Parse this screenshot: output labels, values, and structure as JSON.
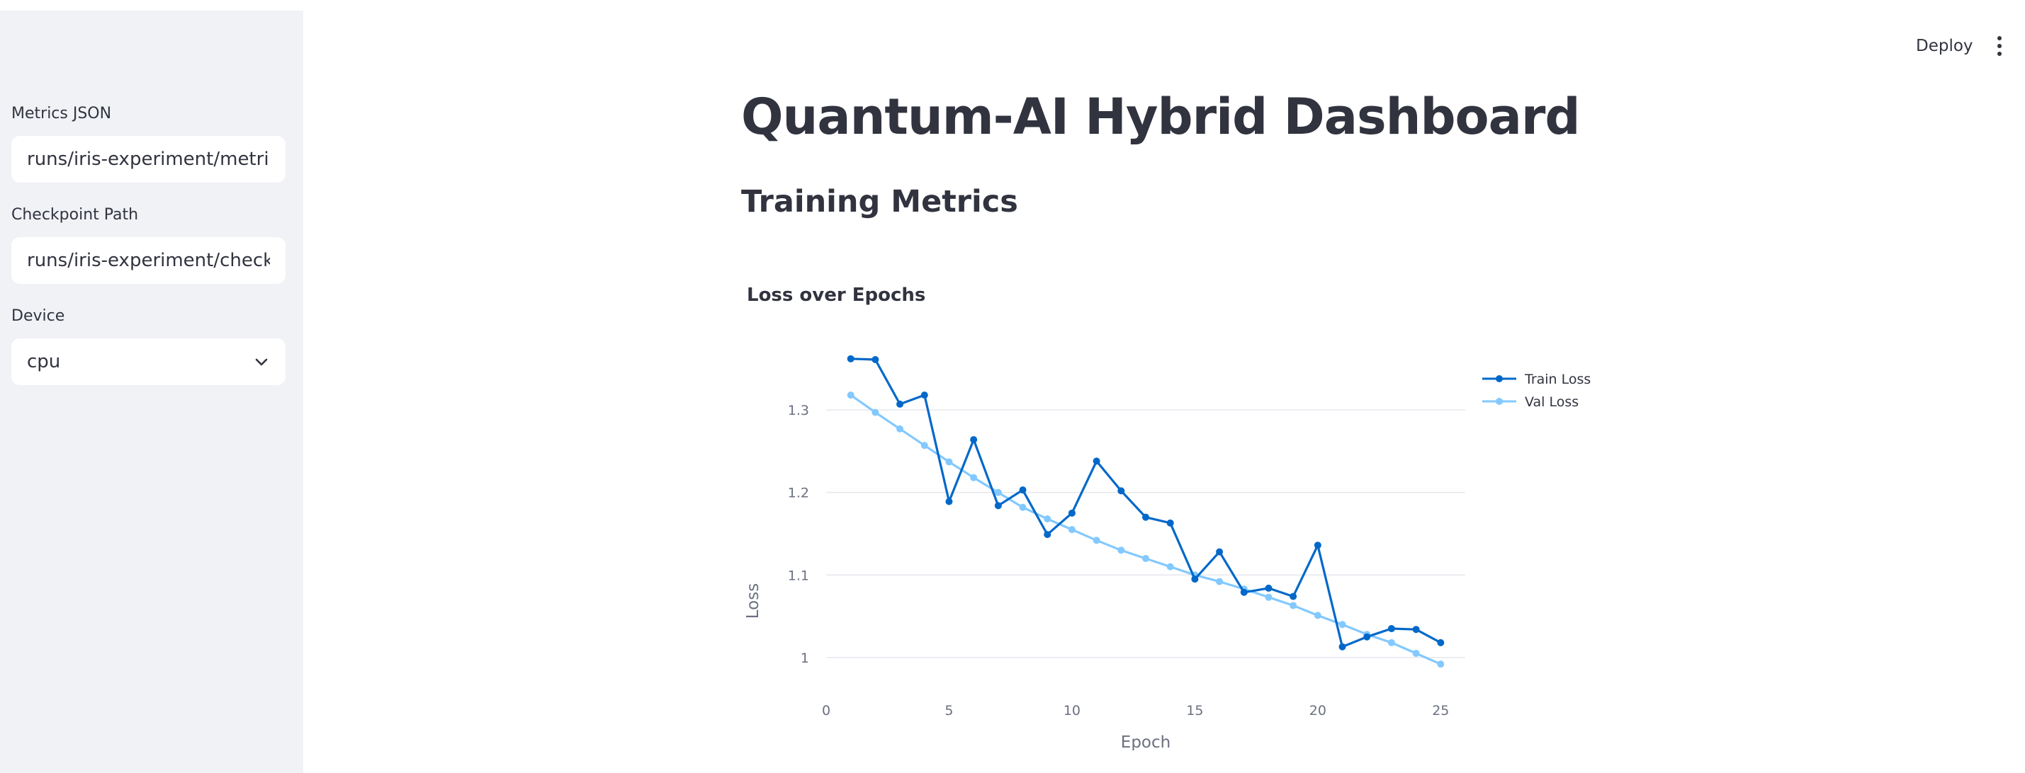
{
  "sidebar": {
    "metrics_json": {
      "label": "Metrics JSON",
      "value": "runs/iris-experiment/metrics.json"
    },
    "checkpoint_path": {
      "label": "Checkpoint Path",
      "value": "runs/iris-experiment/checkpoint"
    },
    "device": {
      "label": "Device",
      "value": "cpu",
      "icon": "chevron-down-icon"
    }
  },
  "header": {
    "deploy_label": "Deploy",
    "menu_icon": "kebab-menu-icon"
  },
  "main": {
    "title": "Quantum-AI Hybrid Dashboard",
    "section_title": "Training Metrics"
  },
  "colors": {
    "sidebar_bg": "#f0f2f6",
    "train_loss": "#0068c9",
    "val_loss": "#83c9ff",
    "text": "#31333f"
  },
  "chart_data": {
    "type": "line",
    "title": "Loss over Epochs",
    "xlabel": "Epoch",
    "ylabel": "Loss",
    "xlim": [
      0,
      26
    ],
    "ylim": [
      0.975,
      1.385
    ],
    "xticks": [
      0,
      5,
      10,
      15,
      20,
      25
    ],
    "yticks": [
      1,
      1.1,
      1.2,
      1.3
    ],
    "ytick_labels": [
      "1",
      "1.1",
      "1.2",
      "1.3"
    ],
    "grid": true,
    "legend_position": "top-right",
    "x": [
      1,
      2,
      3,
      4,
      5,
      6,
      7,
      8,
      9,
      10,
      11,
      12,
      13,
      14,
      15,
      16,
      17,
      18,
      19,
      20,
      21,
      22,
      23,
      24,
      25
    ],
    "series": [
      {
        "name": "Train Loss",
        "color": "#0068c9",
        "values": [
          1.362,
          1.361,
          1.307,
          1.318,
          1.189,
          1.264,
          1.184,
          1.203,
          1.149,
          1.175,
          1.238,
          1.202,
          1.17,
          1.163,
          1.095,
          1.128,
          1.079,
          1.084,
          1.074,
          1.136,
          1.013,
          1.025,
          1.035,
          1.034,
          1.018
        ]
      },
      {
        "name": "Val Loss",
        "color": "#83c9ff",
        "values": [
          1.318,
          1.297,
          1.277,
          1.257,
          1.237,
          1.218,
          1.2,
          1.182,
          1.168,
          1.155,
          1.142,
          1.13,
          1.12,
          1.11,
          1.1,
          1.092,
          1.083,
          1.073,
          1.063,
          1.051,
          1.04,
          1.028,
          1.018,
          1.005,
          0.992
        ]
      }
    ]
  }
}
